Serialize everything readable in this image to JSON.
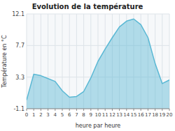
{
  "chart_data": {
    "type": "area",
    "title": "Evolution de la température",
    "x_label": "heure par heure",
    "y_label": "Température en °C",
    "x": [
      0,
      1,
      2,
      3,
      4,
      5,
      6,
      7,
      8,
      9,
      10,
      11,
      12,
      13,
      14,
      15,
      16,
      17,
      18,
      19,
      20
    ],
    "values": [
      0.1,
      3.7,
      3.5,
      3.1,
      2.7,
      1.4,
      0.5,
      0.6,
      1.3,
      3.2,
      5.5,
      7.2,
      8.8,
      10.3,
      11.1,
      11.4,
      10.6,
      8.8,
      5.2,
      2.4,
      2.9
    ],
    "color": "#5ab8d4",
    "xlim": [
      0,
      20
    ],
    "xticks": [
      0,
      1,
      2,
      3,
      4,
      5,
      6,
      7,
      8,
      9,
      10,
      11,
      12,
      13,
      14,
      15,
      16,
      17,
      18,
      19,
      20
    ],
    "ylim": [
      -1.1,
      12.1
    ],
    "yticks": [
      -1.1,
      3.3,
      7.7,
      12.1
    ],
    "grid": true
  }
}
